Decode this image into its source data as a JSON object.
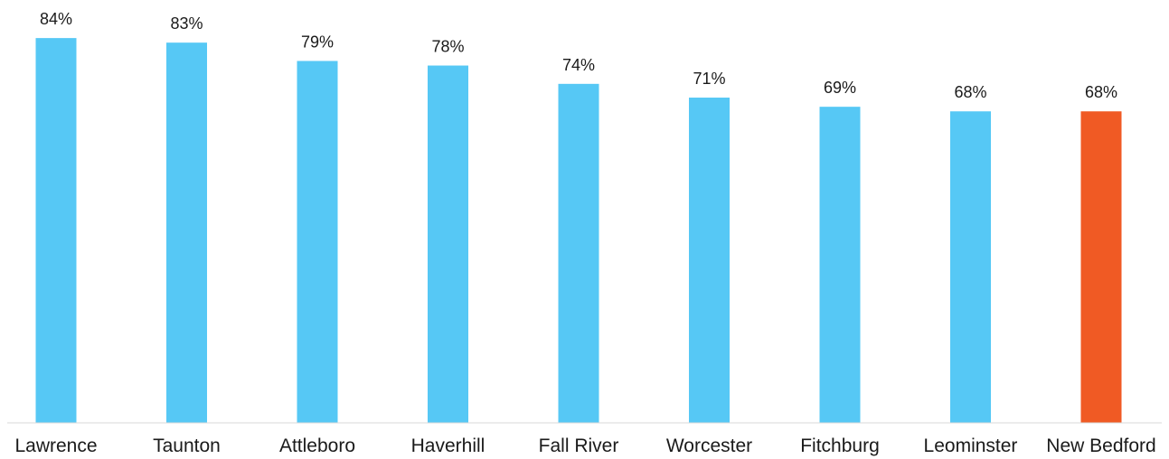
{
  "chart_data": {
    "type": "bar",
    "title": "",
    "xlabel": "",
    "ylabel": "",
    "categories": [
      "Lawrence",
      "Taunton",
      "Attleboro",
      "Haverhill",
      "Fall River",
      "Worcester",
      "Fitchburg",
      "Leominster",
      "New Bedford"
    ],
    "values": [
      84,
      83,
      79,
      78,
      74,
      71,
      69,
      68,
      68
    ],
    "value_labels": [
      "84%",
      "83%",
      "79%",
      "78%",
      "74%",
      "71%",
      "69%",
      "68%",
      "68%"
    ],
    "value_unit": "%",
    "ylim": [
      0,
      84
    ],
    "grid": false,
    "legend": "none",
    "colors": {
      "default_bar": "#56c8f5",
      "highlight_bar": "#f05a24",
      "axis_line": "#d9d9d9",
      "text": "#1a1a1a"
    },
    "highlight_category": "New Bedford"
  }
}
